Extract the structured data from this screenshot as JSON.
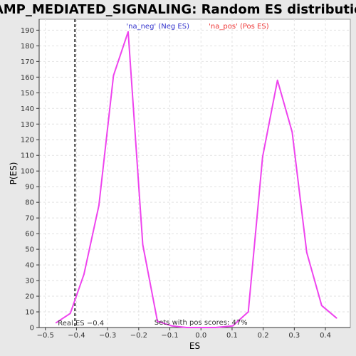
{
  "chart_data": {
    "type": "line",
    "title": "CAMP_MEDIATED_SIGNALING: Random ES distribution",
    "xlabel": "ES",
    "ylabel": "P(ES)",
    "xlim": [
      -0.52,
      0.48
    ],
    "ylim": [
      0,
      197
    ],
    "x_ticks": [
      -0.5,
      -0.4,
      -0.3,
      -0.2,
      -0.1,
      0.0,
      0.1,
      0.2,
      0.3,
      0.4
    ],
    "x_tick_labels": [
      "−0.5",
      "−0.4",
      "−0.3",
      "−0.2",
      "−0.1",
      "0.0",
      "0.1",
      "0.2",
      "0.3",
      "0.4"
    ],
    "y_ticks": [
      0,
      10,
      20,
      30,
      40,
      50,
      60,
      70,
      80,
      90,
      100,
      110,
      120,
      130,
      140,
      150,
      160,
      170,
      180,
      190
    ],
    "grid": true,
    "legend": [
      {
        "label": "'na_neg' (Neg ES)",
        "color": "#3333cc"
      },
      {
        "label": "'na_pos' (Pos ES)",
        "color": "#ee3333"
      }
    ],
    "series": [
      {
        "color": "#ee44ee",
        "x": [
          -0.466,
          -0.42,
          -0.376,
          -0.328,
          -0.281,
          -0.234,
          -0.187,
          -0.14,
          -0.093,
          -0.046,
          0.0,
          0.047,
          0.102,
          0.152,
          0.198,
          0.246,
          0.293,
          0.34,
          0.388,
          0.436
        ],
        "y": [
          3,
          9,
          34,
          78,
          161,
          189,
          53,
          4,
          1,
          0,
          0,
          0,
          1,
          10,
          109,
          158,
          125,
          48,
          14,
          6
        ]
      }
    ],
    "reference_line": {
      "x": -0.405,
      "style": "dashed",
      "label": "Real ES −0.4"
    },
    "annotation": "Sets with pos scores: 47%"
  }
}
